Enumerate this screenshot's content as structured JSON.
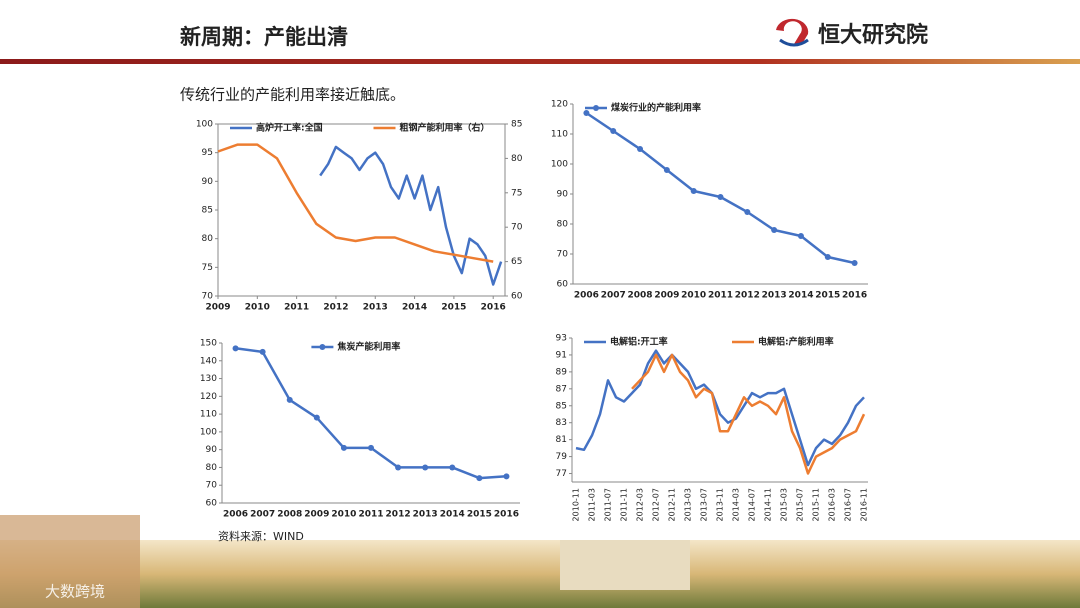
{
  "header": {
    "title": "新周期：产能出清",
    "logo": "恒大研究院"
  },
  "subtitle": "传统行业的产能利用率接近触底。",
  "source": "资料来源：WIND",
  "watermark": "大数跨境",
  "chart_data": [
    {
      "type": "line",
      "xlim": [
        2009,
        2016.3
      ],
      "xticks": [
        2009,
        2010,
        2011,
        2012,
        2013,
        2014,
        2015,
        2016
      ],
      "ylim": [
        70,
        100
      ],
      "yticks": [
        70,
        75,
        80,
        85,
        90,
        95,
        100
      ],
      "y2lim": [
        60,
        85
      ],
      "y2ticks": [
        60,
        65,
        70,
        75,
        80,
        85
      ],
      "legend": "top",
      "frame": true,
      "series": [
        {
          "name": "高炉开工率:全国",
          "color": "#4472c4",
          "x": [
            2011.6,
            2011.8,
            2012.0,
            2012.2,
            2012.4,
            2012.6,
            2012.8,
            2013.0,
            2013.2,
            2013.4,
            2013.6,
            2013.8,
            2014.0,
            2014.2,
            2014.4,
            2014.6,
            2014.8,
            2015.0,
            2015.2,
            2015.4,
            2015.6,
            2015.8,
            2016.0,
            2016.2
          ],
          "values": [
            91,
            93,
            96,
            95,
            94,
            92,
            94,
            95,
            93,
            89,
            87,
            91,
            87,
            91,
            85,
            89,
            82,
            77,
            74,
            80,
            79,
            77,
            72,
            76
          ]
        },
        {
          "name": "粗钢产能利用率（右）",
          "color": "#ed7d31",
          "axis": "y2",
          "x": [
            2009,
            2009.5,
            2010,
            2010.5,
            2011,
            2011.5,
            2012,
            2012.5,
            2013,
            2013.5,
            2014,
            2014.5,
            2015,
            2015.5,
            2016
          ],
          "values": [
            81,
            82,
            82,
            80,
            75,
            70.5,
            68.5,
            68,
            68.5,
            68.5,
            67.5,
            66.5,
            66,
            65.5,
            65
          ]
        }
      ]
    },
    {
      "type": "line",
      "categories": [
        "2006",
        "2007",
        "2008",
        "2009",
        "2010",
        "2011",
        "2012",
        "2013",
        "2014",
        "2015",
        "2016"
      ],
      "ylim": [
        60,
        120
      ],
      "yticks": [
        60,
        70,
        80,
        90,
        100,
        110,
        120
      ],
      "legend": "top-left",
      "markers": true,
      "series": [
        {
          "name": "煤炭行业的产能利用率",
          "color": "#4472c4",
          "values": [
            117,
            111,
            105,
            98,
            91,
            89,
            84,
            78,
            76,
            69,
            67
          ]
        }
      ]
    },
    {
      "type": "line",
      "categories": [
        "2006",
        "2007",
        "2008",
        "2009",
        "2010",
        "2011",
        "2012",
        "2013",
        "2014",
        "2015",
        "2016"
      ],
      "ylim": [
        60,
        150
      ],
      "yticks": [
        60,
        70,
        80,
        90,
        100,
        110,
        120,
        130,
        140,
        150
      ],
      "legend": "top",
      "markers": true,
      "series": [
        {
          "name": "焦炭产能利用率",
          "color": "#4472c4",
          "values": [
            147,
            145,
            118,
            108,
            91,
            91,
            80,
            80,
            80,
            74,
            75
          ]
        }
      ]
    },
    {
      "type": "line",
      "categories": [
        "2010-11",
        null,
        "2011-03",
        null,
        "2011-07",
        null,
        "2011-11",
        null,
        "2012-03",
        null,
        "2012-07",
        null,
        "2012-11",
        null,
        "2013-03",
        null,
        "2013-07",
        null,
        "2013-11",
        null,
        "2014-03",
        null,
        "2014-07",
        null,
        "2014-11",
        null,
        "2015-03",
        null,
        "2015-07",
        null,
        "2015-11",
        null,
        "2016-03",
        null,
        "2016-07",
        null,
        "2016-11"
      ],
      "ylim": [
        76,
        93
      ],
      "yticks": [
        77,
        79,
        81,
        83,
        85,
        87,
        89,
        91,
        93
      ],
      "legend": "top",
      "rotate_x_labels": true,
      "series": [
        {
          "name": "电解铝:开工率",
          "color": "#4472c4",
          "values": [
            80,
            79.8,
            81.5,
            84,
            88,
            86,
            85.5,
            86.5,
            87.5,
            90,
            91.5,
            90,
            91,
            90,
            89,
            87,
            87.5,
            86.5,
            84,
            83,
            83.5,
            85,
            86.5,
            86,
            86.5,
            86.5,
            87,
            84,
            81,
            78,
            80,
            81,
            80.5,
            81.5,
            83,
            85,
            86
          ]
        },
        {
          "name": "电解铝:产能利用率",
          "color": "#ed7d31",
          "values": [
            null,
            null,
            null,
            null,
            null,
            null,
            null,
            87,
            88,
            89,
            91,
            89,
            91,
            89,
            88,
            86,
            87,
            86.5,
            82,
            82,
            84,
            86,
            85,
            85.5,
            85,
            84,
            86,
            82,
            80,
            77,
            79,
            79.5,
            80,
            81,
            81.5,
            82,
            84
          ]
        }
      ]
    }
  ]
}
